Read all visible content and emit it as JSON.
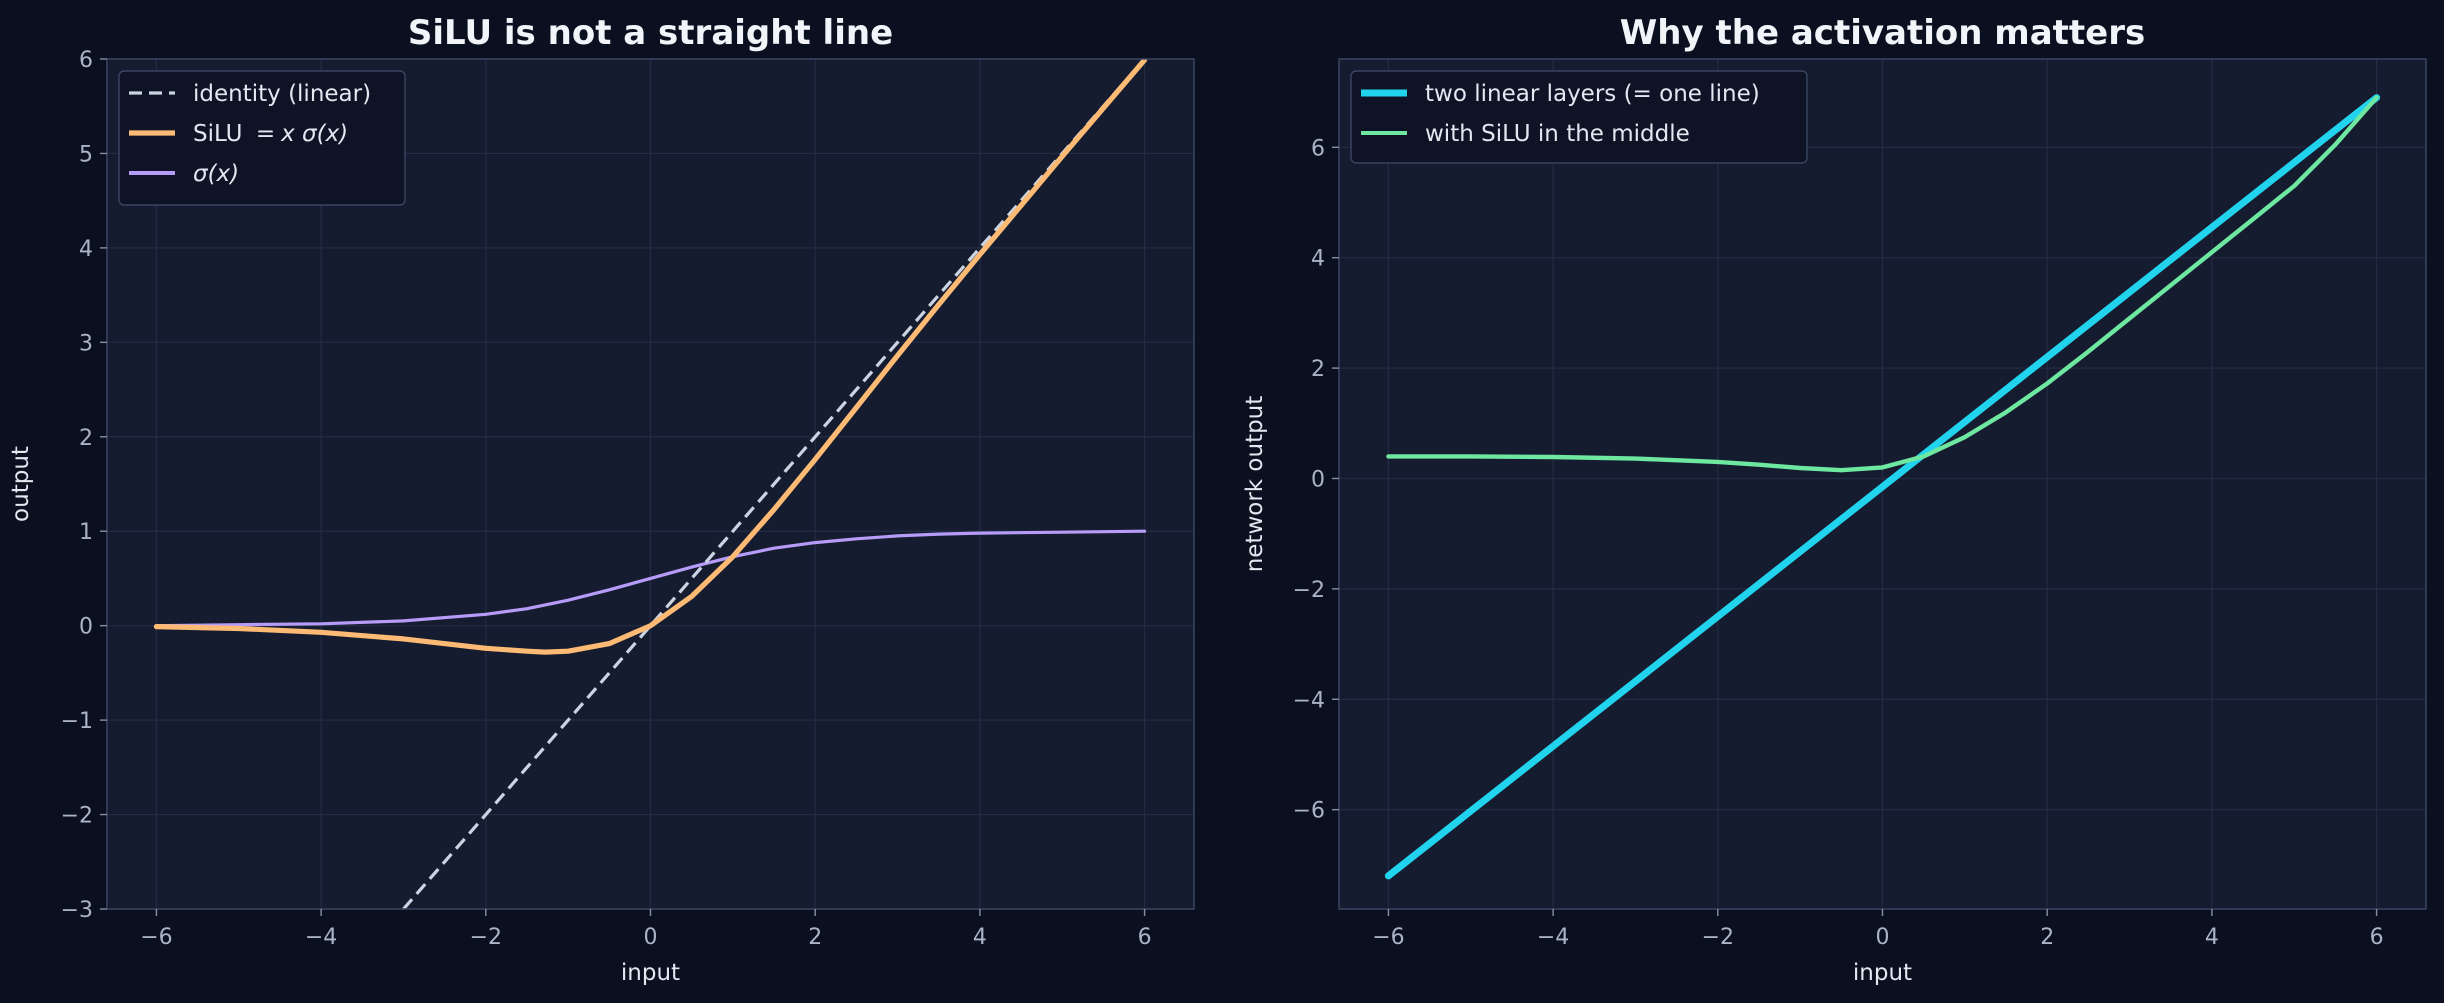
{
  "chart_data": [
    {
      "type": "line",
      "title": "SiLU is not a straight line",
      "xlabel": "input",
      "ylabel": "output",
      "xlim": [
        -6.6,
        6.6
      ],
      "ylim": [
        -3,
        6
      ],
      "xticks": [
        -6,
        -4,
        -2,
        0,
        2,
        4,
        6
      ],
      "xtick_labels": [
        "−6",
        "−4",
        "−2",
        "0",
        "2",
        "4",
        "6"
      ],
      "yticks": [
        -3,
        -2,
        -1,
        0,
        1,
        2,
        3,
        4,
        5,
        6
      ],
      "ytick_labels": [
        "−3",
        "−2",
        "−1",
        "0",
        "1",
        "2",
        "3",
        "4",
        "5",
        "6"
      ],
      "grid": true,
      "legend_position": "top-left",
      "series": [
        {
          "name": "identity (linear)",
          "color": "#cbd5e1",
          "style": "dashed",
          "x": [
            -3,
            6
          ],
          "y": [
            -3,
            6
          ]
        },
        {
          "name": "SiLU = x σ(x)",
          "name_parts": {
            "prefix": "SiLU ",
            "eq": "=",
            "math": "x σ(x)"
          },
          "color": "#fdba74",
          "style": "solid",
          "x": [
            -6,
            -5,
            -4,
            -3,
            -2,
            -1.5,
            -1.28,
            -1,
            -0.5,
            0,
            0.5,
            1,
            1.5,
            2,
            2.5,
            3,
            3.5,
            4,
            4.5,
            5,
            5.5,
            6
          ],
          "y": [
            -0.01,
            -0.03,
            -0.07,
            -0.14,
            -0.24,
            -0.27,
            -0.28,
            -0.27,
            -0.19,
            0,
            0.31,
            0.73,
            1.23,
            1.76,
            2.31,
            2.86,
            3.4,
            3.93,
            4.45,
            4.97,
            5.48,
            5.99
          ]
        },
        {
          "name": "σ(x)",
          "color": "#b69cf8",
          "style": "solid",
          "x": [
            -6,
            -5,
            -4,
            -3,
            -2,
            -1.5,
            -1,
            -0.5,
            0,
            0.5,
            1,
            1.5,
            2,
            2.5,
            3,
            3.5,
            4,
            5,
            6
          ],
          "y": [
            0,
            0.01,
            0.02,
            0.05,
            0.12,
            0.18,
            0.27,
            0.38,
            0.5,
            0.62,
            0.73,
            0.82,
            0.88,
            0.92,
            0.95,
            0.97,
            0.98,
            0.99,
            1.0
          ]
        }
      ]
    },
    {
      "type": "line",
      "title": "Why the activation matters",
      "xlabel": "input",
      "ylabel": "network output",
      "xlim": [
        -6.6,
        6.6
      ],
      "ylim": [
        -7.8,
        7.6
      ],
      "xticks": [
        -6,
        -4,
        -2,
        0,
        2,
        4,
        6
      ],
      "xtick_labels": [
        "−6",
        "−4",
        "−2",
        "0",
        "2",
        "4",
        "6"
      ],
      "yticks": [
        -6,
        -4,
        -2,
        0,
        2,
        4,
        6
      ],
      "ytick_labels": [
        "−6",
        "−4",
        "−2",
        "0",
        "2",
        "4",
        "6"
      ],
      "grid": true,
      "legend_position": "top-left",
      "series": [
        {
          "name": "two linear layers (= one line)",
          "color": "#22d3ee",
          "style": "solid-thick",
          "x": [
            -6,
            6
          ],
          "y": [
            -7.2,
            6.9
          ]
        },
        {
          "name": "with SiLU in the middle",
          "color": "#6ee7a0",
          "style": "solid",
          "x": [
            -6,
            -5,
            -4,
            -3,
            -2,
            -1.5,
            -1,
            -0.5,
            0,
            0.5,
            1,
            1.5,
            2,
            2.5,
            3,
            3.5,
            4,
            4.5,
            5,
            5.5,
            6
          ],
          "y": [
            0.4,
            0.4,
            0.39,
            0.36,
            0.3,
            0.25,
            0.19,
            0.15,
            0.2,
            0.4,
            0.75,
            1.2,
            1.72,
            2.3,
            2.9,
            3.5,
            4.1,
            4.7,
            5.3,
            6.05,
            6.9
          ]
        }
      ]
    }
  ],
  "colors": {
    "figure_background": "#0b1020",
    "axes_background": "#151c30",
    "axes_border": "#3a4560",
    "grid": "#232c44"
  }
}
